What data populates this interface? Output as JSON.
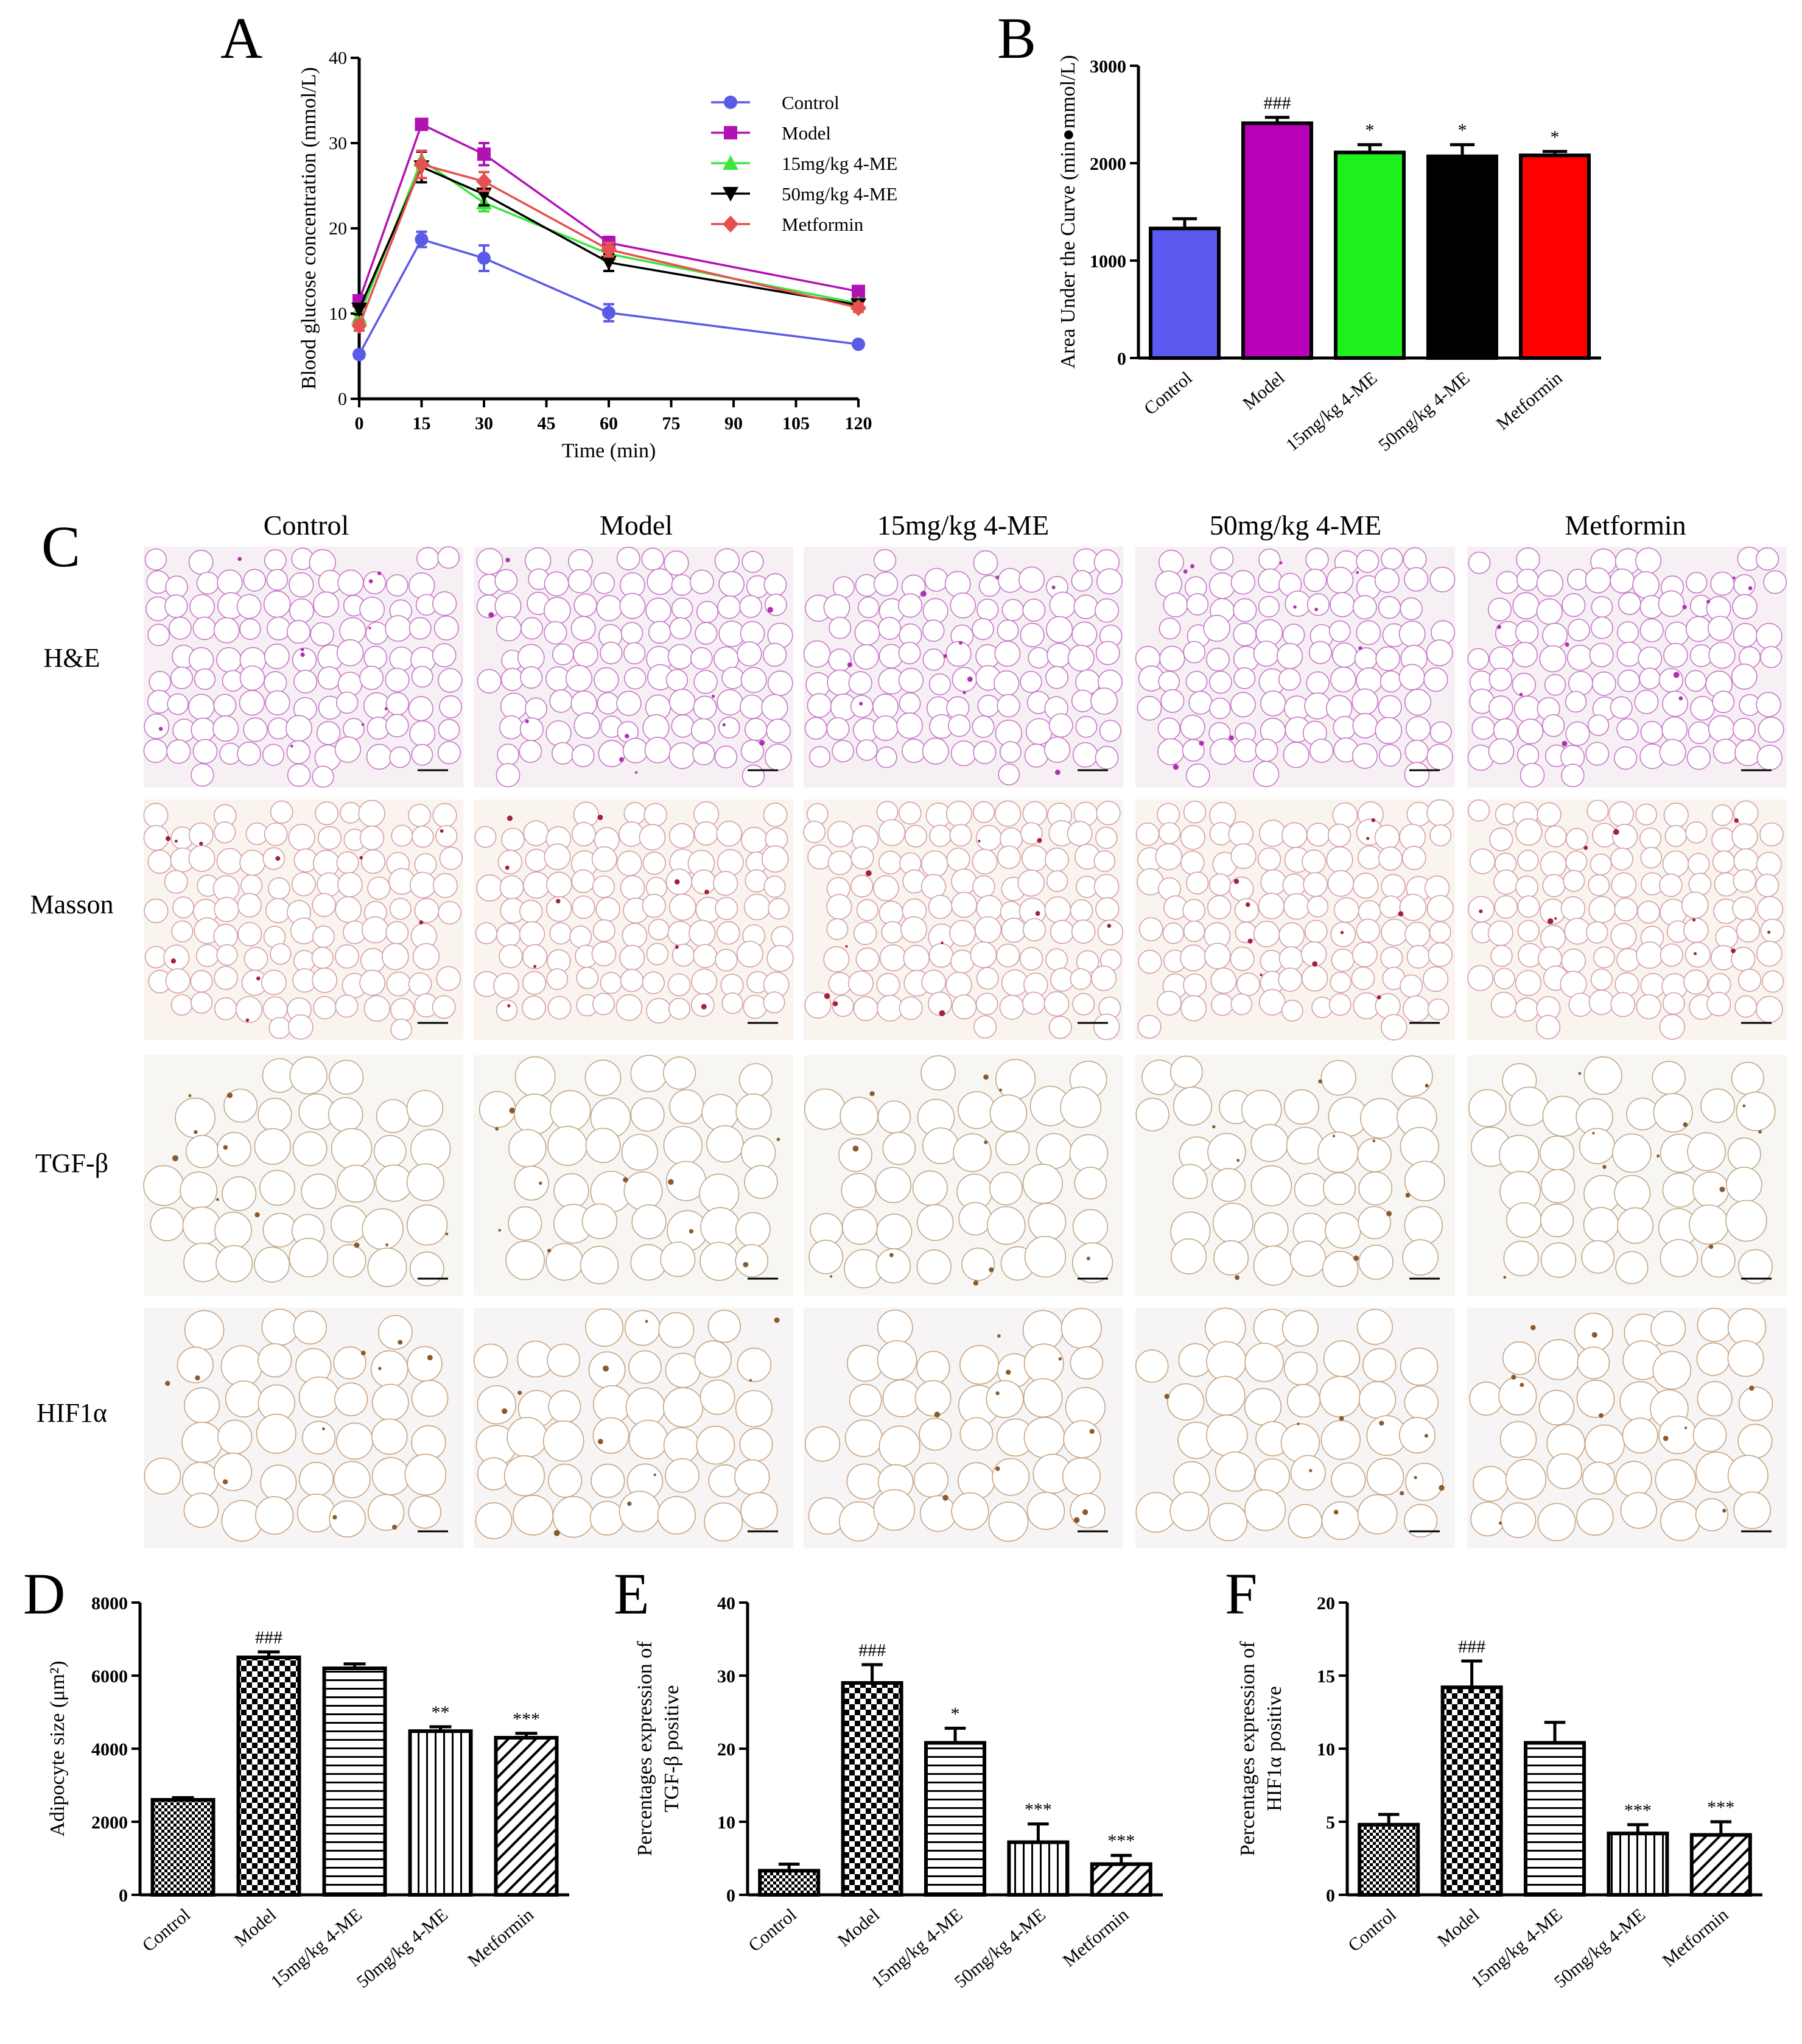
{
  "panel_letters": [
    "A",
    "B",
    "C",
    "D",
    "E",
    "F"
  ],
  "histology": {
    "columns": [
      "Control",
      "Model",
      "15mg/kg 4-ME",
      "50mg/kg 4-ME",
      "Metformin"
    ],
    "rows": [
      "H&E",
      "Masson",
      "TGF-β",
      "HIF1α"
    ]
  },
  "chart_data": [
    {
      "id": "A",
      "type": "line",
      "xlabel": "Time (min)",
      "ylabel": "Blood glucose concentration (mmol/L)",
      "xlim": [
        0,
        120
      ],
      "ylim": [
        0,
        40
      ],
      "xticks": [
        0,
        15,
        30,
        45,
        60,
        75,
        90,
        105,
        120
      ],
      "yticks": [
        0,
        10,
        20,
        30,
        40
      ],
      "x": [
        0,
        15,
        30,
        60,
        120
      ],
      "legend_position": "top-right",
      "series": [
        {
          "name": "Control",
          "color": "#5a5ae6",
          "marker": "circle",
          "values": [
            5.2,
            18.7,
            16.5,
            10.1,
            6.4
          ],
          "errors": [
            0.4,
            0.9,
            1.5,
            1.0,
            0.3
          ]
        },
        {
          "name": "Model",
          "color": "#b312b3",
          "marker": "square",
          "values": [
            11.5,
            32.2,
            28.7,
            18.3,
            12.6
          ],
          "errors": [
            0.6,
            0.5,
            1.3,
            0.7,
            0.6
          ]
        },
        {
          "name": "15mg/kg 4-ME",
          "color": "#3ce63c",
          "marker": "triangle-up",
          "values": [
            9.6,
            28.0,
            23.0,
            17.0,
            11.2
          ],
          "errors": [
            0.6,
            1.0,
            1.0,
            0.8,
            0.5
          ]
        },
        {
          "name": "50mg/kg 4-ME",
          "color": "#000000",
          "marker": "triangle-down",
          "values": [
            10.5,
            27.2,
            24.0,
            16.0,
            11.0
          ],
          "errors": [
            0.6,
            1.8,
            1.3,
            1.0,
            0.5
          ]
        },
        {
          "name": "Metformin",
          "color": "#e65050",
          "marker": "diamond",
          "values": [
            8.6,
            27.5,
            25.5,
            17.5,
            10.7
          ],
          "errors": [
            0.6,
            1.6,
            1.1,
            0.8,
            0.5
          ]
        }
      ]
    },
    {
      "id": "B",
      "type": "bar",
      "ylabel": "Area Under the Curve (min●mmol/L)",
      "ylim": [
        0,
        3000
      ],
      "yticks": [
        0,
        1000,
        2000,
        3000
      ],
      "categories": [
        "Control",
        "Model",
        "15mg/kg 4-ME",
        "50mg/kg 4-ME",
        "Metformin"
      ],
      "values": [
        1330,
        2410,
        2110,
        2070,
        2080
      ],
      "errors": [
        100,
        60,
        80,
        120,
        40
      ],
      "colors": [
        "#5a5af0",
        "#b800b8",
        "#1ef01e",
        "#000000",
        "#ff0000"
      ],
      "annotations": [
        "",
        "###",
        "*",
        "*",
        "*"
      ]
    },
    {
      "id": "D",
      "type": "bar",
      "ylabel": "Adipocyte size (μm²)",
      "ylim": [
        0,
        8000
      ],
      "yticks": [
        0,
        2000,
        4000,
        6000,
        8000
      ],
      "categories": [
        "Control",
        "Model",
        "15mg/kg 4-ME",
        "50mg/kg 4-ME",
        "Metformin"
      ],
      "values": [
        2600,
        6500,
        6200,
        4480,
        4300
      ],
      "errors": [
        60,
        150,
        120,
        120,
        120
      ],
      "patterns": [
        "fine-check",
        "check",
        "horizontal",
        "vertical",
        "diagonal"
      ],
      "annotations": [
        "",
        "###",
        "",
        "**",
        "***"
      ]
    },
    {
      "id": "E",
      "type": "bar",
      "ylabel": "Percentages expression of TGF-β positive",
      "ylim": [
        0,
        40
      ],
      "yticks": [
        0,
        10,
        20,
        30,
        40
      ],
      "categories": [
        "Control",
        "Model",
        "15mg/kg 4-ME",
        "50mg/kg 4-ME",
        "Metformin"
      ],
      "values": [
        3.3,
        29.0,
        20.8,
        7.2,
        4.2
      ],
      "errors": [
        0.9,
        2.5,
        2.0,
        2.5,
        1.2
      ],
      "patterns": [
        "fine-check",
        "check",
        "horizontal",
        "vertical",
        "diagonal"
      ],
      "annotations": [
        "",
        "###",
        "*",
        "***",
        "***"
      ]
    },
    {
      "id": "F",
      "type": "bar",
      "ylabel": "Percentages expression of HIF1α positive",
      "ylim": [
        0,
        20
      ],
      "yticks": [
        0,
        5,
        10,
        15,
        20
      ],
      "categories": [
        "Control",
        "Model",
        "15mg/kg 4-ME",
        "50mg/kg 4-ME",
        "Metformin"
      ],
      "values": [
        4.8,
        14.2,
        10.4,
        4.2,
        4.1
      ],
      "errors": [
        0.7,
        1.8,
        1.4,
        0.6,
        0.9
      ],
      "patterns": [
        "fine-check",
        "check",
        "horizontal",
        "vertical",
        "diagonal"
      ],
      "annotations": [
        "",
        "###",
        "",
        "***",
        "***"
      ]
    }
  ]
}
